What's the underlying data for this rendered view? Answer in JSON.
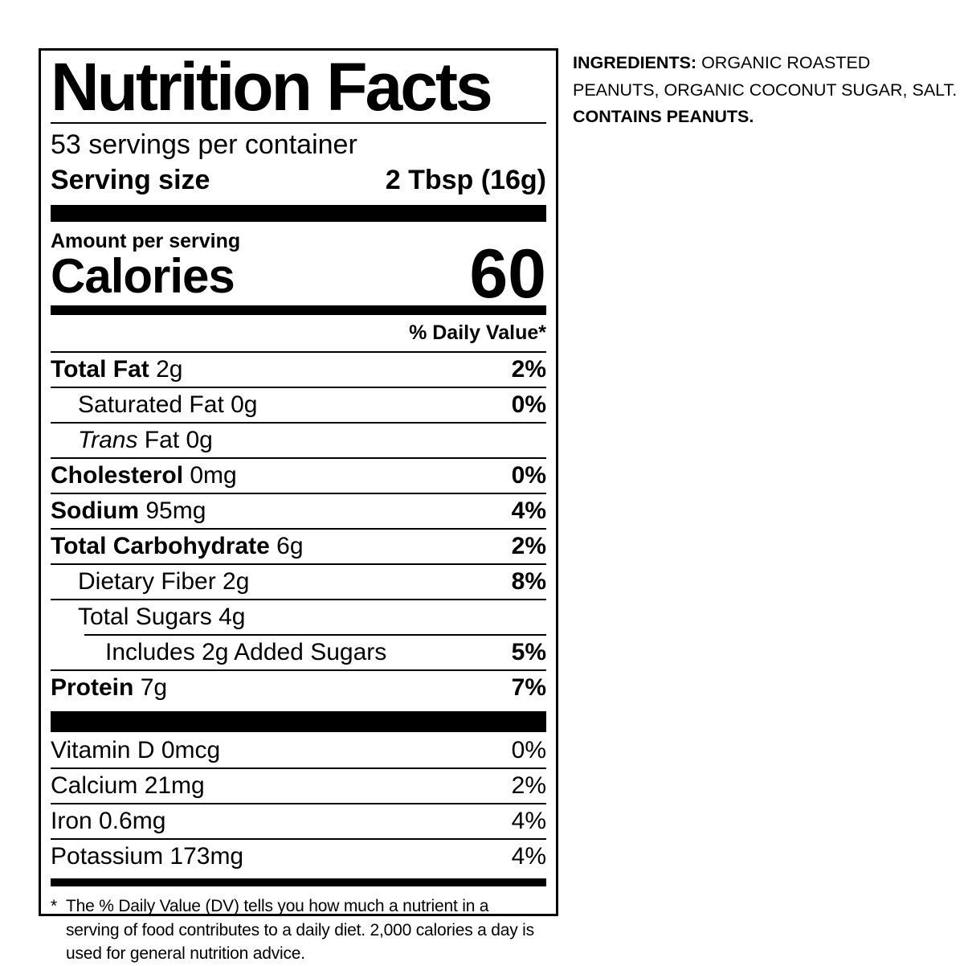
{
  "label": {
    "title": "Nutrition Facts",
    "servings_line": "53 servings per container",
    "serving_size_label": "Serving size",
    "serving_size_value": "2 Tbsp (16g)",
    "amount_per_serving": "Amount per serving",
    "calories_label": "Calories",
    "calories_value": "60",
    "daily_value_header": "% Daily Value*",
    "rows": [
      {
        "parts": [
          {
            "t": "Total Fat",
            "b": true
          },
          {
            "t": " 2g"
          }
        ],
        "pct": "2%",
        "pct_bold": true,
        "indent": 0,
        "rule": "full"
      },
      {
        "parts": [
          {
            "t": "Saturated Fat 0g"
          }
        ],
        "pct": "0%",
        "pct_bold": true,
        "indent": 1,
        "rule": "full"
      },
      {
        "parts": [
          {
            "t": "Trans",
            "i": true
          },
          {
            "t": " Fat 0g"
          }
        ],
        "pct": "",
        "pct_bold": false,
        "indent": 1,
        "rule": "full"
      },
      {
        "parts": [
          {
            "t": "Cholesterol",
            "b": true
          },
          {
            "t": " 0mg"
          }
        ],
        "pct": "0%",
        "pct_bold": true,
        "indent": 0,
        "rule": "full"
      },
      {
        "parts": [
          {
            "t": "Sodium",
            "b": true
          },
          {
            "t": " 95mg"
          }
        ],
        "pct": "4%",
        "pct_bold": true,
        "indent": 0,
        "rule": "full"
      },
      {
        "parts": [
          {
            "t": "Total Carbohydrate",
            "b": true
          },
          {
            "t": " 6g"
          }
        ],
        "pct": "2%",
        "pct_bold": true,
        "indent": 0,
        "rule": "full"
      },
      {
        "parts": [
          {
            "t": "Dietary Fiber 2g"
          }
        ],
        "pct": "8%",
        "pct_bold": true,
        "indent": 1,
        "rule": "full"
      },
      {
        "parts": [
          {
            "t": "Total Sugars 4g"
          }
        ],
        "pct": "",
        "pct_bold": false,
        "indent": 1,
        "rule": "full"
      },
      {
        "parts": [
          {
            "t": "Includes 2g Added Sugars"
          }
        ],
        "pct": "5%",
        "pct_bold": true,
        "indent": 2,
        "rule": "indented"
      },
      {
        "parts": [
          {
            "t": "Protein",
            "b": true
          },
          {
            "t": " 7g"
          }
        ],
        "pct": "7%",
        "pct_bold": true,
        "indent": 0,
        "rule": "full"
      }
    ],
    "vitamin_rows": [
      {
        "parts": [
          {
            "t": "Vitamin D 0mcg"
          }
        ],
        "pct": "0%",
        "pct_bold": false,
        "indent": 0,
        "rule": "none"
      },
      {
        "parts": [
          {
            "t": "Calcium 21mg"
          }
        ],
        "pct": "2%",
        "pct_bold": false,
        "indent": 0,
        "rule": "full"
      },
      {
        "parts": [
          {
            "t": "Iron 0.6mg"
          }
        ],
        "pct": "4%",
        "pct_bold": false,
        "indent": 0,
        "rule": "full"
      },
      {
        "parts": [
          {
            "t": "Potassium 173mg"
          }
        ],
        "pct": "4%",
        "pct_bold": false,
        "indent": 0,
        "rule": "full"
      }
    ],
    "footnote_marker": "*",
    "footnote": "The % Daily Value (DV) tells you how much a nutrient in a serving of food contributes to a daily diet. 2,000 calories a day is used for general nutrition advice."
  },
  "ingredients": {
    "heading": "INGREDIENTS:",
    "list": " ORGANIC ROASTED PEANUTS, ORGANIC COCONUT SUGAR, SALT.",
    "contains": "CONTAINS PEANUTS."
  },
  "colors": {
    "text": "#000000",
    "background": "#ffffff"
  }
}
